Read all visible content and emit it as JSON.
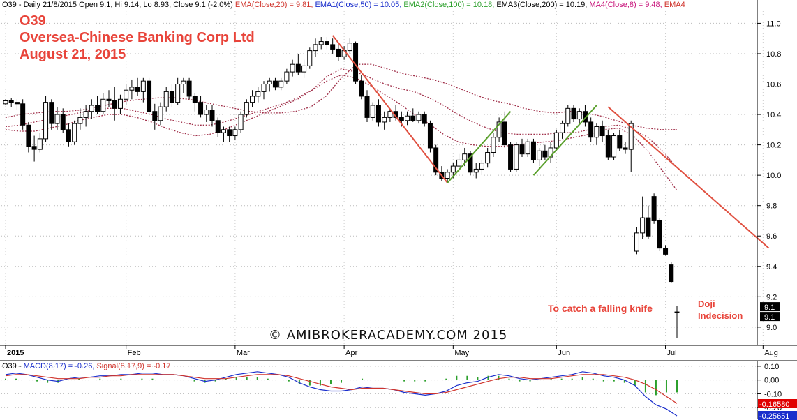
{
  "header": {
    "symbol_info": "O39 - Daily 21/8/2015 Open 9.1, Hi 9.14, Lo 8.93, Close 9.1 (-2.0%)",
    "ema20": "EMA(Close,20) = 9.81,",
    "ema50": "EMA1(Close,50) = 10.05,",
    "ema100": "EMA2(Close,100) = 10.18,",
    "ema200": "EMA3(Close,200) = 10.19,",
    "ma8": "MA4(Close,8) = 9.48,",
    "ema4": "EMA4"
  },
  "title": {
    "line1": "O39",
    "line2": "Oversea-Chinese Banking Corp Ltd",
    "line3": "August 21, 2015"
  },
  "annotations": {
    "falling_knife": "To catch a falling knife",
    "doji": "Doji",
    "indecision": "Indecision",
    "watermark": "© AMIBROKERACADEMY.COM 2015"
  },
  "macd_header": {
    "prefix": "O39 -",
    "macd": "MACD(8,17) = -0.26,",
    "signal": "Signal(8,17,9) = -0.17"
  },
  "colors": {
    "text": "#000000",
    "ema20": "#d0342c",
    "ema50": "#1a2ecc",
    "ema100": "#2ca02c",
    "ema200": "#000000",
    "ma8": "#c8137a",
    "ema4": "#d0342c",
    "title": "#e8443a",
    "trend_down": "#e05040",
    "trend_up": "#5aa02c",
    "band": "#a0304a",
    "macd_line": "#1a2ecc",
    "signal_line": "#d0342c",
    "histogram": "#2ca02c"
  },
  "chart_data": [
    {
      "type": "candlestick",
      "title": "O39 Oversea-Chinese Banking Corp Ltd",
      "x_tick_labels": [
        "2015",
        "Feb",
        "Mar",
        "Apr",
        "May",
        "Jun",
        "Jul",
        "Aug"
      ],
      "y_ticks": [
        9.0,
        9.2,
        9.4,
        9.6,
        9.8,
        10.0,
        10.2,
        10.4,
        10.6,
        10.8,
        11.0
      ],
      "y_tick_labels": [
        "9.0",
        "9.2",
        "9.4",
        "9.6",
        "9.8",
        "10.0",
        "10.2",
        "10.4",
        "10.6",
        "10.8",
        "11.0"
      ],
      "ylim": [
        8.88,
        11.08
      ],
      "grid": true,
      "last_price_labels": [
        "9.1",
        "9.1"
      ],
      "candles": [
        [
          10.47,
          10.5,
          10.46,
          10.49
        ],
        [
          10.49,
          10.51,
          10.45,
          10.48
        ],
        [
          10.48,
          10.5,
          10.43,
          10.47
        ],
        [
          10.47,
          10.5,
          10.3,
          10.33
        ],
        [
          10.33,
          10.35,
          10.15,
          10.19
        ],
        [
          10.19,
          10.26,
          10.09,
          10.17
        ],
        [
          10.17,
          10.28,
          10.15,
          10.24
        ],
        [
          10.24,
          10.52,
          10.22,
          10.48
        ],
        [
          10.48,
          10.5,
          10.3,
          10.34
        ],
        [
          10.34,
          10.45,
          10.3,
          10.4
        ],
        [
          10.4,
          10.44,
          10.28,
          10.3
        ],
        [
          10.3,
          10.34,
          10.19,
          10.22
        ],
        [
          10.22,
          10.36,
          10.2,
          10.34
        ],
        [
          10.34,
          10.44,
          10.3,
          10.38
        ],
        [
          10.38,
          10.46,
          10.32,
          10.42
        ],
        [
          10.42,
          10.5,
          10.37,
          10.46
        ],
        [
          10.46,
          10.52,
          10.4,
          10.42
        ],
        [
          10.42,
          10.54,
          10.4,
          10.5
        ],
        [
          10.5,
          10.56,
          10.45,
          10.49
        ],
        [
          10.49,
          10.58,
          10.36,
          10.44
        ],
        [
          10.44,
          10.53,
          10.4,
          10.5
        ],
        [
          10.5,
          10.6,
          10.46,
          10.56
        ],
        [
          10.56,
          10.63,
          10.5,
          10.58
        ],
        [
          10.58,
          10.64,
          10.52,
          10.55
        ],
        [
          10.55,
          10.64,
          10.48,
          10.62
        ],
        [
          10.62,
          10.64,
          10.4,
          10.42
        ],
        [
          10.42,
          10.47,
          10.3,
          10.36
        ],
        [
          10.36,
          10.48,
          10.33,
          10.45
        ],
        [
          10.45,
          10.58,
          10.42,
          10.55
        ],
        [
          10.55,
          10.6,
          10.45,
          10.48
        ],
        [
          10.48,
          10.64,
          10.46,
          10.6
        ],
        [
          10.6,
          10.64,
          10.54,
          10.62
        ],
        [
          10.62,
          10.64,
          10.5,
          10.52
        ],
        [
          10.52,
          10.54,
          10.42,
          10.48
        ],
        [
          10.48,
          10.52,
          10.38,
          10.4
        ],
        [
          10.4,
          10.46,
          10.35,
          10.43
        ],
        [
          10.43,
          10.46,
          10.32,
          10.36
        ],
        [
          10.36,
          10.38,
          10.25,
          10.28
        ],
        [
          10.28,
          10.32,
          10.22,
          10.3
        ],
        [
          10.3,
          10.32,
          10.22,
          10.26
        ],
        [
          10.26,
          10.32,
          10.23,
          10.3
        ],
        [
          10.3,
          10.42,
          10.28,
          10.4
        ],
        [
          10.4,
          10.5,
          10.38,
          10.48
        ],
        [
          10.48,
          10.56,
          10.45,
          10.52
        ],
        [
          10.52,
          10.58,
          10.48,
          10.55
        ],
        [
          10.55,
          10.62,
          10.5,
          10.6
        ],
        [
          10.6,
          10.64,
          10.55,
          10.62
        ],
        [
          10.62,
          10.64,
          10.56,
          10.58
        ],
        [
          10.58,
          10.64,
          10.56,
          10.62
        ],
        [
          10.62,
          10.7,
          10.6,
          10.68
        ],
        [
          10.68,
          10.76,
          10.65,
          10.73
        ],
        [
          10.73,
          10.8,
          10.66,
          10.68
        ],
        [
          10.68,
          10.76,
          10.64,
          10.72
        ],
        [
          10.72,
          10.84,
          10.7,
          10.82
        ],
        [
          10.82,
          10.9,
          10.78,
          10.86
        ],
        [
          10.86,
          10.91,
          10.83,
          10.88
        ],
        [
          10.88,
          10.91,
          10.83,
          10.86
        ],
        [
          10.86,
          10.9,
          10.8,
          10.83
        ],
        [
          10.83,
          10.86,
          10.75,
          10.78
        ],
        [
          10.78,
          10.85,
          10.76,
          10.82
        ],
        [
          10.82,
          10.9,
          10.8,
          10.87
        ],
        [
          10.87,
          10.88,
          10.6,
          10.62
        ],
        [
          10.62,
          10.66,
          10.5,
          10.52
        ],
        [
          10.52,
          10.56,
          10.35,
          10.38
        ],
        [
          10.38,
          10.48,
          10.36,
          10.46
        ],
        [
          10.46,
          10.5,
          10.32,
          10.35
        ],
        [
          10.35,
          10.42,
          10.3,
          10.38
        ],
        [
          10.38,
          10.44,
          10.35,
          10.42
        ],
        [
          10.42,
          10.46,
          10.36,
          10.38
        ],
        [
          10.38,
          10.42,
          10.32,
          10.36
        ],
        [
          10.36,
          10.42,
          10.33,
          10.39
        ],
        [
          10.39,
          10.44,
          10.35,
          10.36
        ],
        [
          10.36,
          10.42,
          10.34,
          10.4
        ],
        [
          10.4,
          10.42,
          10.32,
          10.34
        ],
        [
          10.34,
          10.36,
          10.15,
          10.18
        ],
        [
          10.18,
          10.2,
          10.0,
          10.02
        ],
        [
          10.02,
          10.06,
          9.96,
          9.98
        ],
        [
          9.98,
          10.04,
          9.95,
          10.02
        ],
        [
          10.02,
          10.08,
          9.98,
          10.06
        ],
        [
          10.06,
          10.14,
          10.02,
          10.1
        ],
        [
          10.1,
          10.18,
          10.06,
          10.14
        ],
        [
          10.14,
          10.16,
          10.0,
          10.02
        ],
        [
          10.02,
          10.08,
          9.98,
          10.04
        ],
        [
          10.04,
          10.1,
          10.0,
          10.08
        ],
        [
          10.08,
          10.18,
          10.05,
          10.15
        ],
        [
          10.15,
          10.28,
          10.12,
          10.25
        ],
        [
          10.25,
          10.38,
          10.22,
          10.35
        ],
        [
          10.35,
          10.42,
          10.18,
          10.2
        ],
        [
          10.2,
          10.22,
          10.02,
          10.04
        ],
        [
          10.04,
          10.22,
          10.02,
          10.2
        ],
        [
          10.2,
          10.24,
          10.12,
          10.14
        ],
        [
          10.14,
          10.24,
          10.12,
          10.22
        ],
        [
          10.22,
          10.24,
          10.08,
          10.1
        ],
        [
          10.1,
          10.18,
          10.06,
          10.16
        ],
        [
          10.16,
          10.2,
          10.1,
          10.12
        ],
        [
          10.12,
          10.22,
          10.08,
          10.18
        ],
        [
          10.18,
          10.3,
          10.16,
          10.28
        ],
        [
          10.28,
          10.36,
          10.24,
          10.34
        ],
        [
          10.34,
          10.46,
          10.32,
          10.44
        ],
        [
          10.44,
          10.46,
          10.35,
          10.37
        ],
        [
          10.37,
          10.44,
          10.34,
          10.42
        ],
        [
          10.42,
          10.46,
          10.32,
          10.35
        ],
        [
          10.35,
          10.38,
          10.22,
          10.25
        ],
        [
          10.25,
          10.34,
          10.2,
          10.32
        ],
        [
          10.32,
          10.36,
          10.22,
          10.26
        ],
        [
          10.26,
          10.3,
          10.1,
          10.12
        ],
        [
          10.12,
          10.28,
          10.1,
          10.26
        ],
        [
          10.26,
          10.3,
          10.16,
          10.18
        ],
        [
          10.18,
          10.22,
          10.14,
          10.17
        ],
        [
          10.17,
          10.36,
          10.02,
          10.34
        ],
        [
          9.5,
          9.66,
          9.48,
          9.62
        ],
        [
          9.62,
          9.86,
          9.58,
          9.72
        ],
        [
          9.72,
          9.8,
          9.58,
          9.6
        ],
        [
          9.86,
          9.88,
          9.68,
          9.7
        ],
        [
          9.7,
          9.72,
          9.5,
          9.52
        ],
        [
          9.52,
          9.54,
          9.47,
          9.48
        ],
        [
          9.41,
          9.43,
          9.29,
          9.3
        ],
        [
          9.1,
          9.14,
          8.93,
          9.1
        ]
      ],
      "ema_upper": [
        10.38,
        10.4,
        10.41,
        10.42,
        10.42,
        10.43,
        10.45,
        10.47,
        10.49,
        10.5,
        10.51,
        10.51,
        10.5,
        10.48,
        10.46,
        10.44,
        10.42,
        10.41,
        10.41,
        10.42,
        10.45,
        10.52,
        10.64,
        10.73,
        10.73,
        10.7,
        10.67,
        10.65,
        10.63,
        10.6,
        10.56,
        10.52,
        10.49,
        10.47,
        10.44,
        10.42,
        10.41,
        10.42,
        10.41,
        10.39,
        10.36,
        10.33,
        10.31,
        10.3,
        10.3
      ],
      "ema_middle": [
        10.32,
        10.33,
        10.35,
        10.37,
        10.39,
        10.41,
        10.43,
        10.44,
        10.44,
        10.42,
        10.4,
        10.37,
        10.35,
        10.33,
        10.33,
        10.35,
        10.38,
        10.41,
        10.44,
        10.47,
        10.51,
        10.56,
        10.65,
        10.7,
        10.68,
        10.64,
        10.6,
        10.57,
        10.55,
        10.51,
        10.46,
        10.4,
        10.35,
        10.31,
        10.28,
        10.27,
        10.27,
        10.27,
        10.28,
        10.28,
        10.3,
        10.32,
        10.33,
        10.3,
        10.25,
        10.16,
        10.05
      ],
      "ema_lower": [
        10.3,
        10.29,
        10.29,
        10.31,
        10.33,
        10.36,
        10.38,
        10.4,
        10.4,
        10.38,
        10.35,
        10.31,
        10.28,
        10.26,
        10.27,
        10.3,
        10.34,
        10.38,
        10.42,
        10.46,
        10.5,
        10.56,
        10.62,
        10.66,
        10.64,
        10.59,
        10.53,
        10.47,
        10.4,
        10.34,
        10.27,
        10.22,
        10.2,
        10.19,
        10.19,
        10.2,
        10.21,
        10.22,
        10.23,
        10.25,
        10.27,
        10.3,
        10.31,
        10.26,
        10.16,
        10.03,
        9.9
      ]
    },
    {
      "type": "line",
      "title": "MACD(8,17)",
      "y_ticks": [
        0.1,
        0.0,
        -0.1,
        -0.2
      ],
      "y_tick_labels": [
        "0.10",
        "0.00",
        "-0.10",
        "-0.20"
      ],
      "ylim": [
        -0.28,
        0.14
      ],
      "last_value_labels": [
        "-0.16580",
        "-0.25651"
      ],
      "series": [
        {
          "name": "MACD(8,17)",
          "values": [
            0.04,
            0.05,
            0.04,
            0.02,
            0.0,
            -0.01,
            0.01,
            0.02,
            0.02,
            0.03,
            0.03,
            0.04,
            0.04,
            0.05,
            0.05,
            0.04,
            0.04,
            0.03,
            0.01,
            -0.01,
            0.0,
            0.02,
            0.04,
            0.05,
            0.06,
            0.05,
            0.04,
            0.02,
            -0.02,
            -0.05,
            -0.07,
            -0.08,
            -0.08,
            -0.07,
            -0.05,
            -0.06,
            -0.06,
            -0.07,
            -0.09,
            -0.1,
            -0.11,
            -0.1,
            -0.08,
            -0.04,
            -0.02,
            -0.01,
            0.02,
            0.04,
            0.03,
            0.01,
            0.0,
            0.01,
            0.02,
            0.03,
            0.04,
            0.06,
            0.05,
            0.03,
            0.02,
            0.0,
            -0.04,
            -0.12,
            -0.18,
            -0.21,
            -0.26
          ]
        },
        {
          "name": "Signal(8,17,9)",
          "values": [
            0.03,
            0.04,
            0.04,
            0.03,
            0.02,
            0.01,
            0.01,
            0.01,
            0.02,
            0.02,
            0.03,
            0.03,
            0.04,
            0.04,
            0.04,
            0.04,
            0.04,
            0.03,
            0.02,
            0.01,
            0.01,
            0.01,
            0.02,
            0.03,
            0.04,
            0.04,
            0.04,
            0.03,
            0.01,
            -0.01,
            -0.03,
            -0.05,
            -0.06,
            -0.07,
            -0.06,
            -0.06,
            -0.06,
            -0.07,
            -0.08,
            -0.09,
            -0.1,
            -0.1,
            -0.09,
            -0.07,
            -0.05,
            -0.03,
            -0.01,
            0.01,
            0.02,
            0.02,
            0.01,
            0.01,
            0.01,
            0.02,
            0.03,
            0.04,
            0.04,
            0.04,
            0.03,
            0.02,
            0.0,
            -0.03,
            -0.07,
            -0.12,
            -0.17
          ]
        },
        {
          "name": "histogram",
          "values": [
            0.01,
            0.01,
            0.0,
            -0.01,
            -0.02,
            -0.02,
            0.0,
            0.01,
            0.0,
            0.01,
            0.0,
            0.01,
            0.0,
            0.01,
            0.01,
            0.0,
            0.0,
            0.0,
            -0.01,
            -0.02,
            -0.01,
            0.01,
            0.02,
            0.02,
            0.02,
            0.01,
            0.0,
            -0.01,
            -0.03,
            -0.04,
            -0.04,
            -0.03,
            -0.02,
            0.0,
            0.01,
            0.0,
            0.0,
            0.0,
            -0.01,
            -0.01,
            -0.01,
            0.0,
            0.01,
            0.03,
            0.03,
            0.02,
            0.03,
            0.03,
            0.01,
            -0.01,
            -0.01,
            0.0,
            0.01,
            0.01,
            0.01,
            0.02,
            0.01,
            -0.01,
            -0.01,
            -0.02,
            -0.04,
            -0.09,
            -0.11,
            -0.09,
            -0.09
          ]
        }
      ]
    }
  ]
}
